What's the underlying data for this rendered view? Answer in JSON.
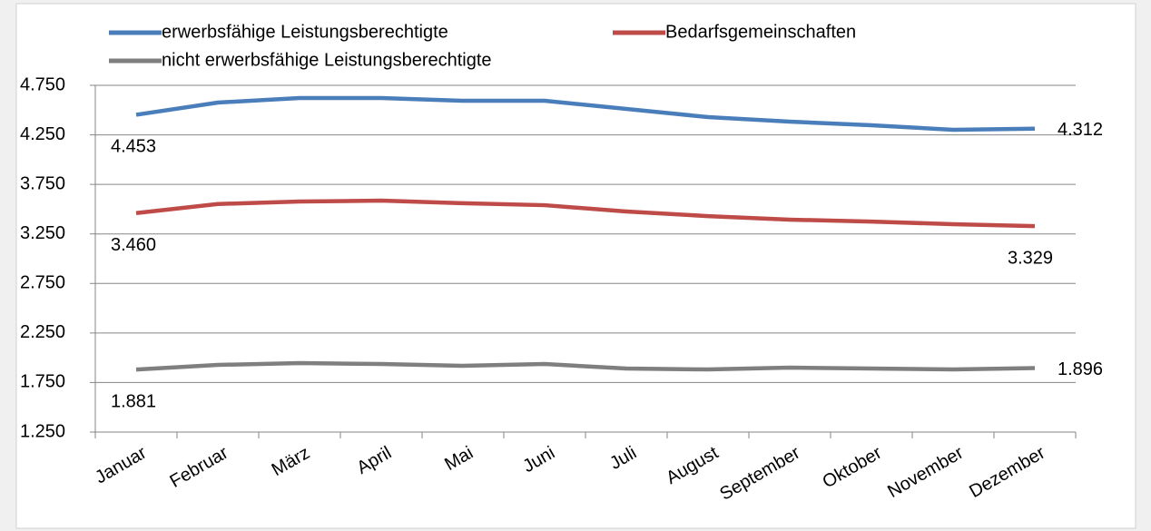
{
  "chart_data": {
    "type": "line",
    "categories": [
      "Januar",
      "Februar",
      "März",
      "April",
      "Mai",
      "Juni",
      "Juli",
      "August",
      "September",
      "Oktober",
      "November",
      "Dezember"
    ],
    "series": [
      {
        "name": "erwerbsfähige Leistungsberechtigte",
        "color": "#4a7ebb",
        "values": [
          4453,
          4576,
          4622,
          4622,
          4594,
          4594,
          4512,
          4429,
          4383,
          4347,
          4301,
          4312
        ],
        "value_labels": [
          "4.453",
          null,
          null,
          null,
          null,
          null,
          null,
          null,
          null,
          null,
          null,
          "4.312"
        ]
      },
      {
        "name": "Bedarfsgemeinschaften",
        "color": "#be4b48",
        "values": [
          3460,
          3552,
          3577,
          3586,
          3560,
          3540,
          3476,
          3430,
          3394,
          3375,
          3348,
          3329
        ],
        "value_labels": [
          "3.460",
          null,
          null,
          null,
          null,
          null,
          null,
          null,
          null,
          null,
          null,
          "3.329"
        ]
      },
      {
        "name": "nicht erwerbsfähige Leistungsberechtigte",
        "color": "#7f7f7f",
        "values": [
          1881,
          1928,
          1946,
          1937,
          1919,
          1937,
          1891,
          1882,
          1900,
          1891,
          1882,
          1896
        ],
        "value_labels": [
          "1.881",
          null,
          null,
          null,
          null,
          null,
          null,
          null,
          null,
          null,
          null,
          "1.896"
        ]
      }
    ],
    "ylim": [
      1250,
      4750
    ],
    "yticks": [
      {
        "value": 1250,
        "label": "1.250"
      },
      {
        "value": 1750,
        "label": "1.750"
      },
      {
        "value": 2250,
        "label": "2.250"
      },
      {
        "value": 2750,
        "label": "2.750"
      },
      {
        "value": 3250,
        "label": "3.250"
      },
      {
        "value": 3750,
        "label": "3.750"
      },
      {
        "value": 4250,
        "label": "4.250"
      },
      {
        "value": 4750,
        "label": "4.750"
      }
    ],
    "grid": true,
    "legend": "top"
  }
}
